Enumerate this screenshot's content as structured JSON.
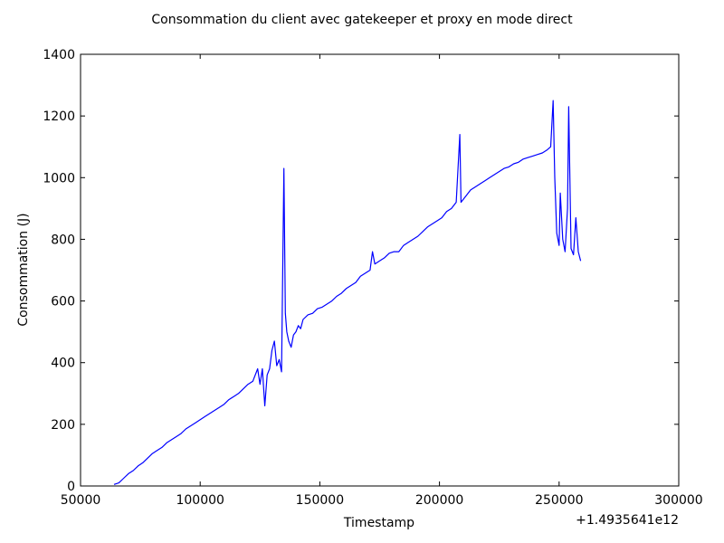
{
  "chart_data": {
    "type": "line",
    "title": "Consommation du client avec gatekeeper et proxy en mode direct",
    "xlabel": "Timestamp",
    "ylabel": "Consommation (J)",
    "x_offset_label": "+1.4935641e12",
    "xlim": [
      50000,
      300000
    ],
    "ylim": [
      0,
      1400
    ],
    "xticks": [
      50000,
      100000,
      150000,
      200000,
      250000,
      300000
    ],
    "xtick_labels": [
      "50000",
      "100000",
      "150000",
      "200000",
      "250000",
      "300000"
    ],
    "yticks": [
      0,
      200,
      400,
      600,
      800,
      1000,
      1200,
      1400
    ],
    "ytick_labels": [
      "0",
      "200",
      "400",
      "600",
      "800",
      "1000",
      "1200",
      "1400"
    ],
    "grid": false,
    "line_color": "#0000ff",
    "series": [
      {
        "x": [
          64000,
          66000,
          68000,
          70000,
          72000,
          74000,
          76000,
          78000,
          80000,
          82000,
          84000,
          86000,
          88000,
          90000,
          92000,
          94000,
          96000,
          98000,
          100000,
          102000,
          104000,
          106000,
          108000,
          110000,
          112000,
          114000,
          116000,
          118000,
          120000,
          122000,
          124000,
          125000,
          126000,
          127000,
          128000,
          129000,
          130000,
          131000,
          132000,
          133000,
          134000,
          135000,
          135600,
          136200,
          137000,
          138000,
          139000,
          140000,
          141000,
          142000,
          143000,
          145000,
          147000,
          149000,
          151000,
          153000,
          155000,
          157000,
          159000,
          161000,
          163000,
          165000,
          167000,
          169000,
          171000,
          172000,
          173000,
          175000,
          177000,
          179000,
          181000,
          183000,
          185000,
          187000,
          189000,
          191000,
          193000,
          195000,
          197000,
          199000,
          201000,
          203000,
          205000,
          207000,
          208500,
          209000,
          211000,
          213000,
          215000,
          217000,
          219000,
          221000,
          223000,
          225000,
          227000,
          229000,
          231000,
          233000,
          235000,
          237000,
          239000,
          241000,
          243000,
          245000,
          246500,
          247500,
          248200,
          249000,
          250000,
          250500,
          251500,
          252500,
          253500,
          254000,
          255000,
          256000,
          257000,
          258000,
          259000
        ],
        "y": [
          5,
          10,
          25,
          40,
          50,
          65,
          75,
          90,
          105,
          115,
          125,
          140,
          150,
          160,
          170,
          185,
          195,
          205,
          215,
          225,
          235,
          245,
          255,
          265,
          280,
          290,
          300,
          315,
          330,
          340,
          380,
          330,
          380,
          260,
          360,
          380,
          440,
          470,
          390,
          410,
          370,
          1030,
          560,
          500,
          470,
          450,
          490,
          500,
          520,
          510,
          540,
          555,
          560,
          575,
          580,
          590,
          600,
          615,
          625,
          640,
          650,
          660,
          680,
          690,
          700,
          760,
          720,
          730,
          740,
          755,
          760,
          760,
          780,
          790,
          800,
          810,
          825,
          840,
          850,
          860,
          870,
          890,
          900,
          920,
          1140,
          920,
          940,
          960,
          970,
          980,
          990,
          1000,
          1010,
          1020,
          1030,
          1035,
          1045,
          1050,
          1060,
          1065,
          1070,
          1075,
          1080,
          1090,
          1100,
          1250,
          1000,
          820,
          780,
          950,
          800,
          760,
          900,
          1230,
          770,
          750,
          870,
          760,
          730
        ]
      }
    ]
  }
}
